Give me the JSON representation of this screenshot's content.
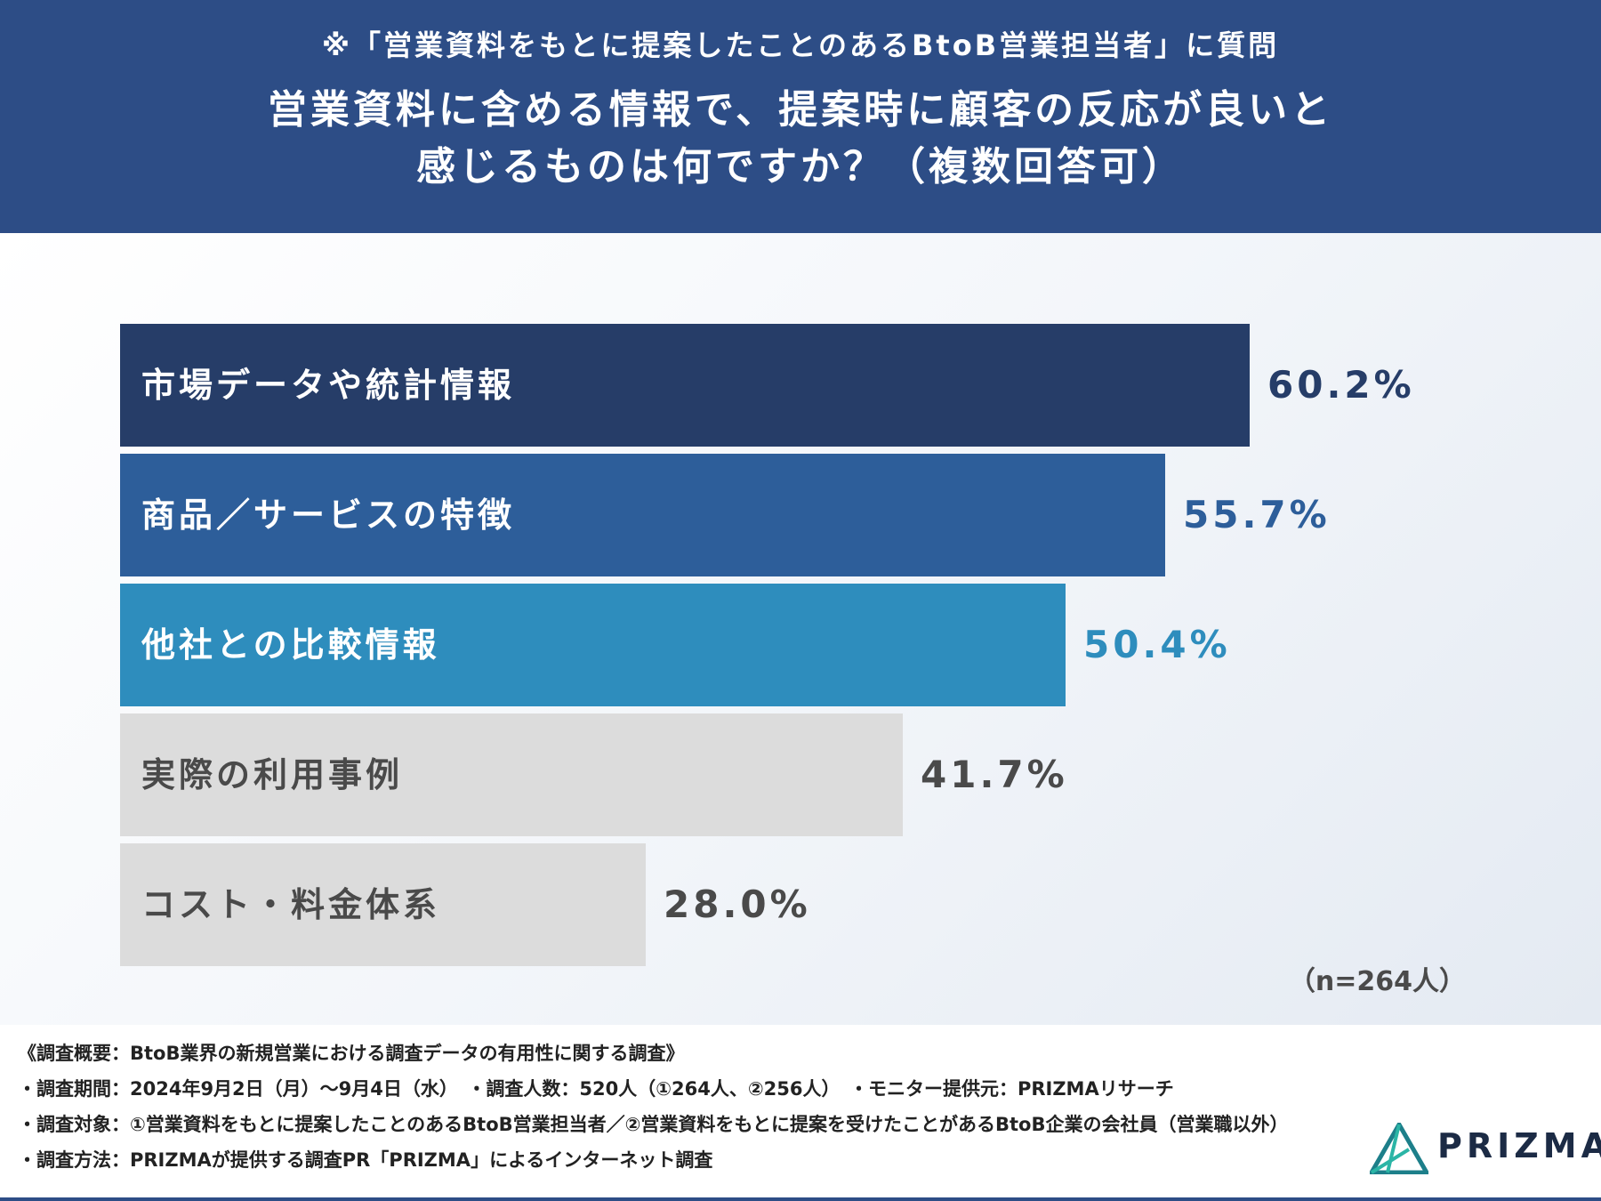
{
  "header": {
    "subtitle": "※「営業資料をもとに提案したことのあるBtoB営業担当者」に質問",
    "title_line1": "営業資料に含める情報で、提案時に顧客の反応が良いと",
    "title_line2": "感じるものは何ですか？（複数回答可）"
  },
  "chart_data": {
    "type": "bar",
    "orientation": "horizontal",
    "title": "営業資料に含める情報で、提案時に顧客の反応が良いと感じるものは何ですか？（複数回答可）",
    "categories": [
      "市場データや統計情報",
      "商品／サービスの特徴",
      "他社との比較情報",
      "実際の利用事例",
      "コスト・料金体系"
    ],
    "values": [
      60.2,
      55.7,
      50.4,
      41.7,
      28.0
    ],
    "value_labels": [
      "60.2%",
      "55.7%",
      "50.4%",
      "41.7%",
      "28.0%"
    ],
    "unit": "%",
    "xlim": [
      0,
      100
    ],
    "colors": [
      "#263d68",
      "#2d5e9a",
      "#2e8dbd",
      "#dcdcdc",
      "#dcdcdc"
    ],
    "label_colors": [
      "#ffffff",
      "#ffffff",
      "#ffffff",
      "#4a4a4a",
      "#4a4a4a"
    ],
    "value_colors": [
      "#263d68",
      "#2d5e9a",
      "#2e8dbd",
      "#4a4a4a",
      "#4a4a4a"
    ],
    "sample_note": "（n=264人）"
  },
  "footer": {
    "overview": "《調査概要：BtoB業界の新規営業における調査データの有用性に関する調査》",
    "period": "・調査期間：2024年9月2日（月）〜9月4日（水）　・調査人数：520人（①264人、②256人）　・モニター提供元：PRIZMAリサーチ",
    "target": "・調査対象：①営業資料をもとに提案したことのあるBtoB営業担当者／②営業資料をもとに提案を受けたことがあるBtoB企業の会社員（営業職以外）",
    "method": "・調査方法：PRIZMAが提供する調査PR「PRIZMA」によるインターネット調査"
  },
  "logo": {
    "text": "PRIZMA",
    "colors": [
      "#2bb5a6",
      "#1d7f8a",
      "#1c2b45"
    ]
  }
}
